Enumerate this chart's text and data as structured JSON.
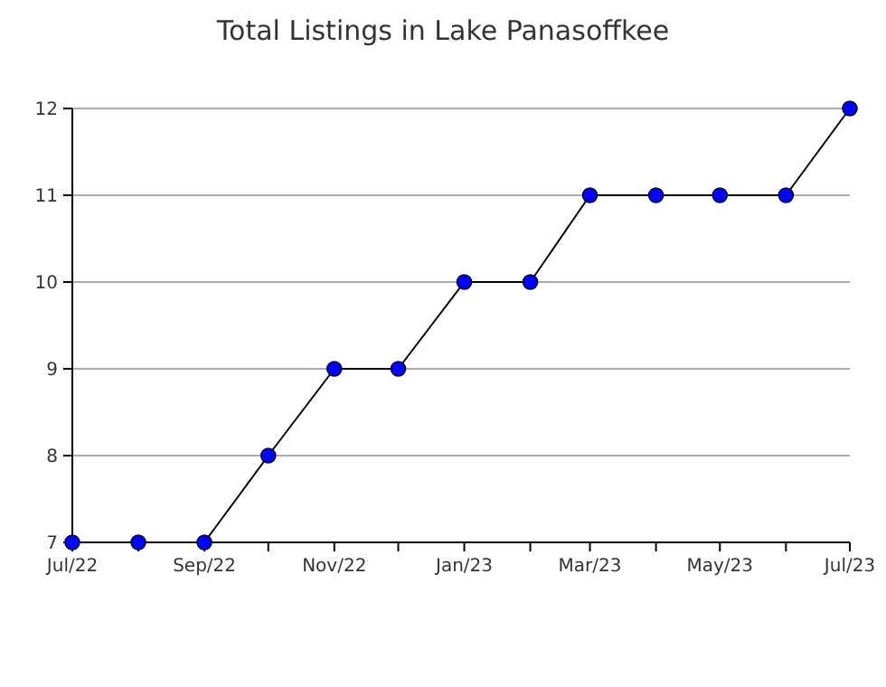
{
  "chart_data": {
    "type": "line",
    "title": "Total Listings in Lake Panasoffkee",
    "x": [
      "2022-07",
      "2022-08",
      "2022-09",
      "2022-10",
      "2022-11",
      "2022-12",
      "2023-01",
      "2023-02",
      "2023-03",
      "2023-04",
      "2023-05",
      "2023-06",
      "2023-07"
    ],
    "series": [
      {
        "color": "#0000ff",
        "values": [
          7,
          7,
          7,
          8,
          9,
          9,
          10,
          10,
          11,
          11,
          11,
          11,
          12
        ]
      }
    ],
    "xlim": [
      "2022-07",
      "2023-07"
    ],
    "xticks": [
      {
        "value": "2022-07",
        "label": "Jul/22"
      },
      {
        "value": "2022-08",
        "label": null
      },
      {
        "value": "2022-09",
        "label": "Sep/22"
      },
      {
        "value": "2022-10",
        "label": null
      },
      {
        "value": "2022-11",
        "label": "Nov/22"
      },
      {
        "value": "2022-12",
        "label": null
      },
      {
        "value": "2023-01",
        "label": "Jan/23"
      },
      {
        "value": "2023-02",
        "label": null
      },
      {
        "value": "2023-03",
        "label": "Mar/23"
      },
      {
        "value": "2023-04",
        "label": null
      },
      {
        "value": "2023-05",
        "label": "May/23"
      },
      {
        "value": "2023-06",
        "label": null
      },
      {
        "value": "2023-07",
        "label": "Jul/23"
      }
    ],
    "ylim": [
      7,
      12
    ],
    "yticks": [
      7,
      8,
      9,
      10,
      11,
      12
    ],
    "grid": "y",
    "marker": "circle",
    "line_style": "solid"
  }
}
